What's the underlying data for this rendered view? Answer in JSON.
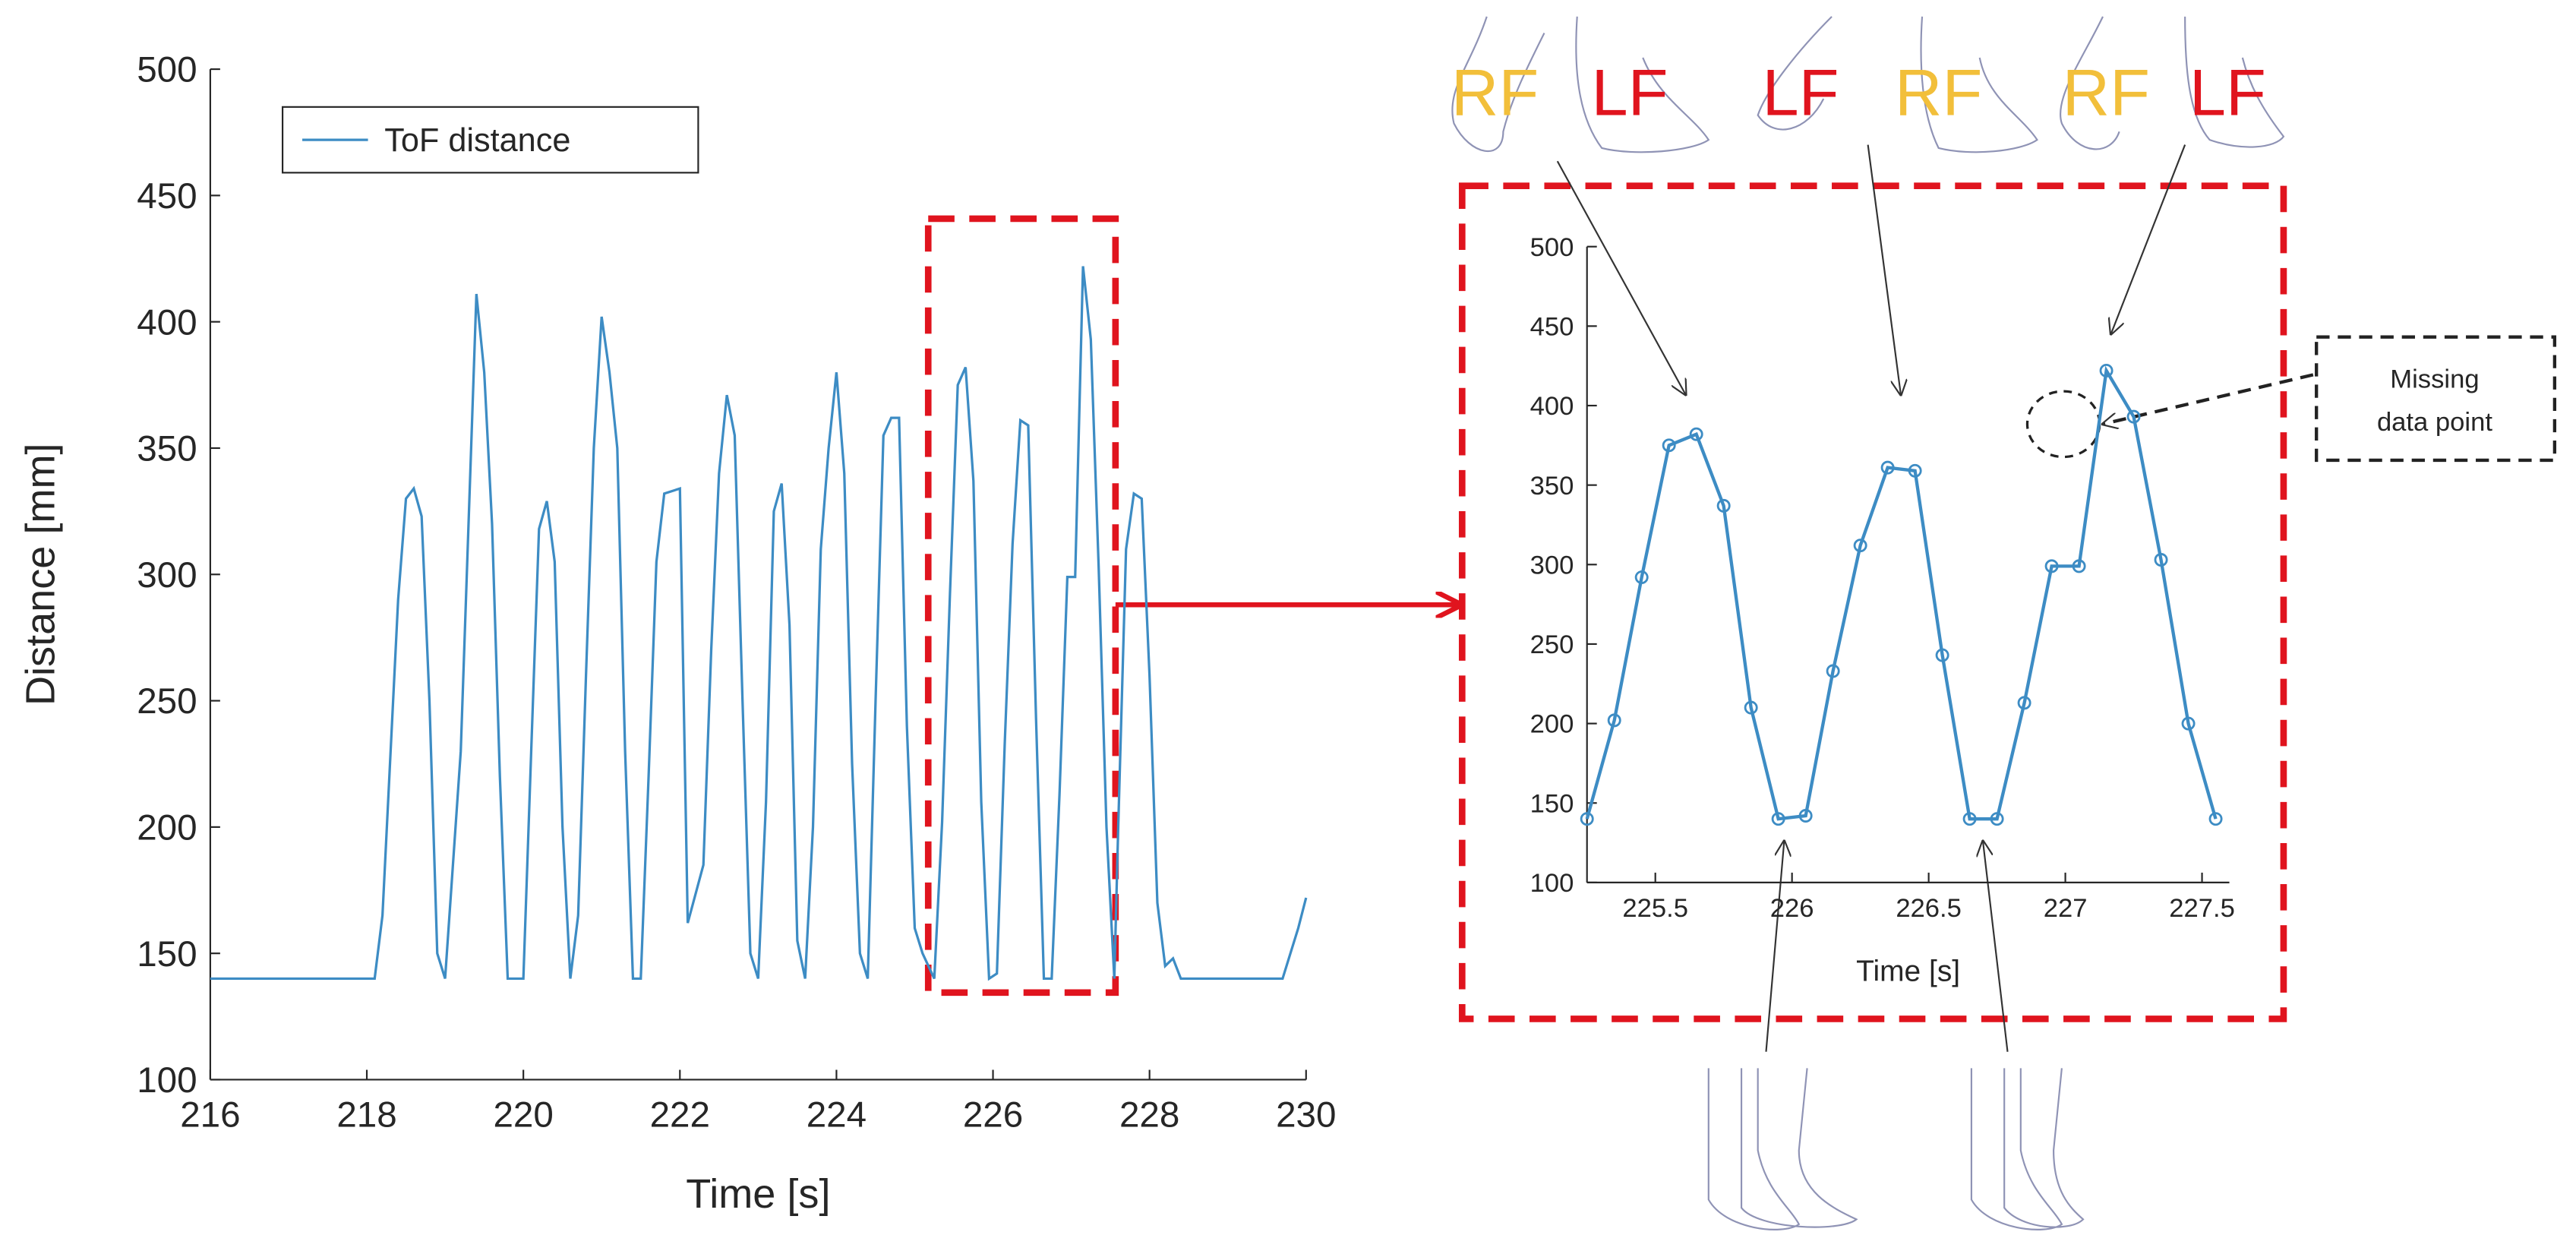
{
  "chart_data": [
    {
      "type": "line",
      "xlabel": "Time [s]",
      "ylabel": "Distance [mm]",
      "legend": "upper left",
      "xlim": [
        216,
        230
      ],
      "ylim": [
        100,
        500
      ],
      "xticks": [
        216,
        218,
        220,
        222,
        224,
        226,
        228,
        230
      ],
      "yticks": [
        100,
        150,
        200,
        250,
        300,
        350,
        400,
        450,
        500
      ],
      "x": [
        216,
        218.1,
        218.2,
        218.4,
        218.5,
        218.6,
        218.7,
        218.8,
        218.9,
        219.0,
        219.2,
        219.4,
        219.5,
        219.6,
        219.7,
        219.8,
        220.0,
        220.1,
        220.2,
        220.3,
        220.4,
        220.5,
        220.6,
        220.7,
        220.8,
        220.9,
        221.0,
        221.1,
        221.2,
        221.3,
        221.4,
        221.5,
        221.6,
        221.7,
        221.8,
        222.0,
        222.1,
        222.3,
        222.4,
        222.5,
        222.6,
        222.7,
        222.8,
        222.9,
        223.0,
        223.1,
        223.2,
        223.3,
        223.4,
        223.5,
        223.6,
        223.7,
        223.8,
        223.9,
        224.0,
        224.1,
        224.2,
        224.3,
        224.4,
        224.5,
        224.6,
        224.7,
        224.8,
        224.9,
        225.0,
        225.1,
        225.25,
        225.35,
        225.45,
        225.55,
        225.65,
        225.75,
        225.85,
        225.95,
        226.05,
        226.15,
        226.25,
        226.35,
        226.45,
        226.55,
        226.65,
        226.75,
        226.85,
        226.95,
        227.05,
        227.15,
        227.25,
        227.35,
        227.45,
        227.55,
        227.6,
        227.7,
        227.8,
        227.9,
        228.0,
        228.1,
        228.2,
        228.3,
        228.4,
        229.7,
        229.8,
        229.9,
        230.0
      ],
      "series": [
        {
          "name": "ToF distance",
          "color": "#3d8cc4",
          "values": [
            140,
            140,
            165,
            290,
            330,
            334,
            323,
            250,
            150,
            140,
            230,
            411,
            380,
            320,
            220,
            140,
            140,
            230,
            318,
            329,
            305,
            200,
            140,
            165,
            260,
            350,
            402,
            380,
            350,
            230,
            140,
            140,
            220,
            305,
            332,
            334,
            162,
            185,
            270,
            340,
            371,
            355,
            250,
            150,
            140,
            210,
            325,
            336,
            280,
            155,
            140,
            200,
            310,
            350,
            380,
            340,
            225,
            150,
            140,
            250,
            355,
            362,
            362,
            240,
            160,
            150,
            140,
            202,
            292,
            375,
            382,
            337,
            210,
            140,
            142,
            233,
            312,
            361,
            359,
            243,
            140,
            140,
            213,
            299,
            299,
            422,
            393,
            303,
            200,
            140,
            200,
            310,
            332,
            330,
            260,
            170,
            145,
            148,
            140,
            140,
            150,
            160,
            172
          ]
        }
      ]
    },
    {
      "type": "line",
      "xlabel": "Time [s]",
      "marker": "o",
      "xlim": [
        225.25,
        227.6
      ],
      "ylim": [
        100,
        500
      ],
      "xticks": [
        225.5,
        226,
        226.5,
        227,
        227.5
      ],
      "yticks": [
        100,
        150,
        200,
        250,
        300,
        350,
        400,
        450,
        500
      ],
      "x": [
        225.25,
        225.35,
        225.45,
        225.55,
        225.65,
        225.75,
        225.85,
        225.95,
        226.05,
        226.15,
        226.25,
        226.35,
        226.45,
        226.55,
        226.65,
        226.75,
        226.85,
        226.95,
        227.05,
        227.15,
        227.25,
        227.35,
        227.45,
        227.55
      ],
      "series": [
        {
          "name": "ToF distance",
          "color": "#3d8cc4",
          "values": [
            140,
            202,
            292,
            375,
            382,
            337,
            210,
            140,
            142,
            233,
            312,
            361,
            359,
            243,
            140,
            140,
            213,
            299,
            299,
            422,
            393,
            303,
            200,
            140
          ]
        }
      ]
    }
  ],
  "annotations": {
    "foot_labels": [
      {
        "text": "RF",
        "color": "#f2bf3a"
      },
      {
        "text": "LF",
        "color": "#e0141e"
      },
      {
        "text": "LF",
        "color": "#e0141e"
      },
      {
        "text": "RF",
        "color": "#f2bf3a"
      },
      {
        "text": "RF",
        "color": "#f2bf3a"
      },
      {
        "text": "LF",
        "color": "#e0141e"
      }
    ],
    "callout": [
      "Missing",
      "data point"
    ]
  }
}
